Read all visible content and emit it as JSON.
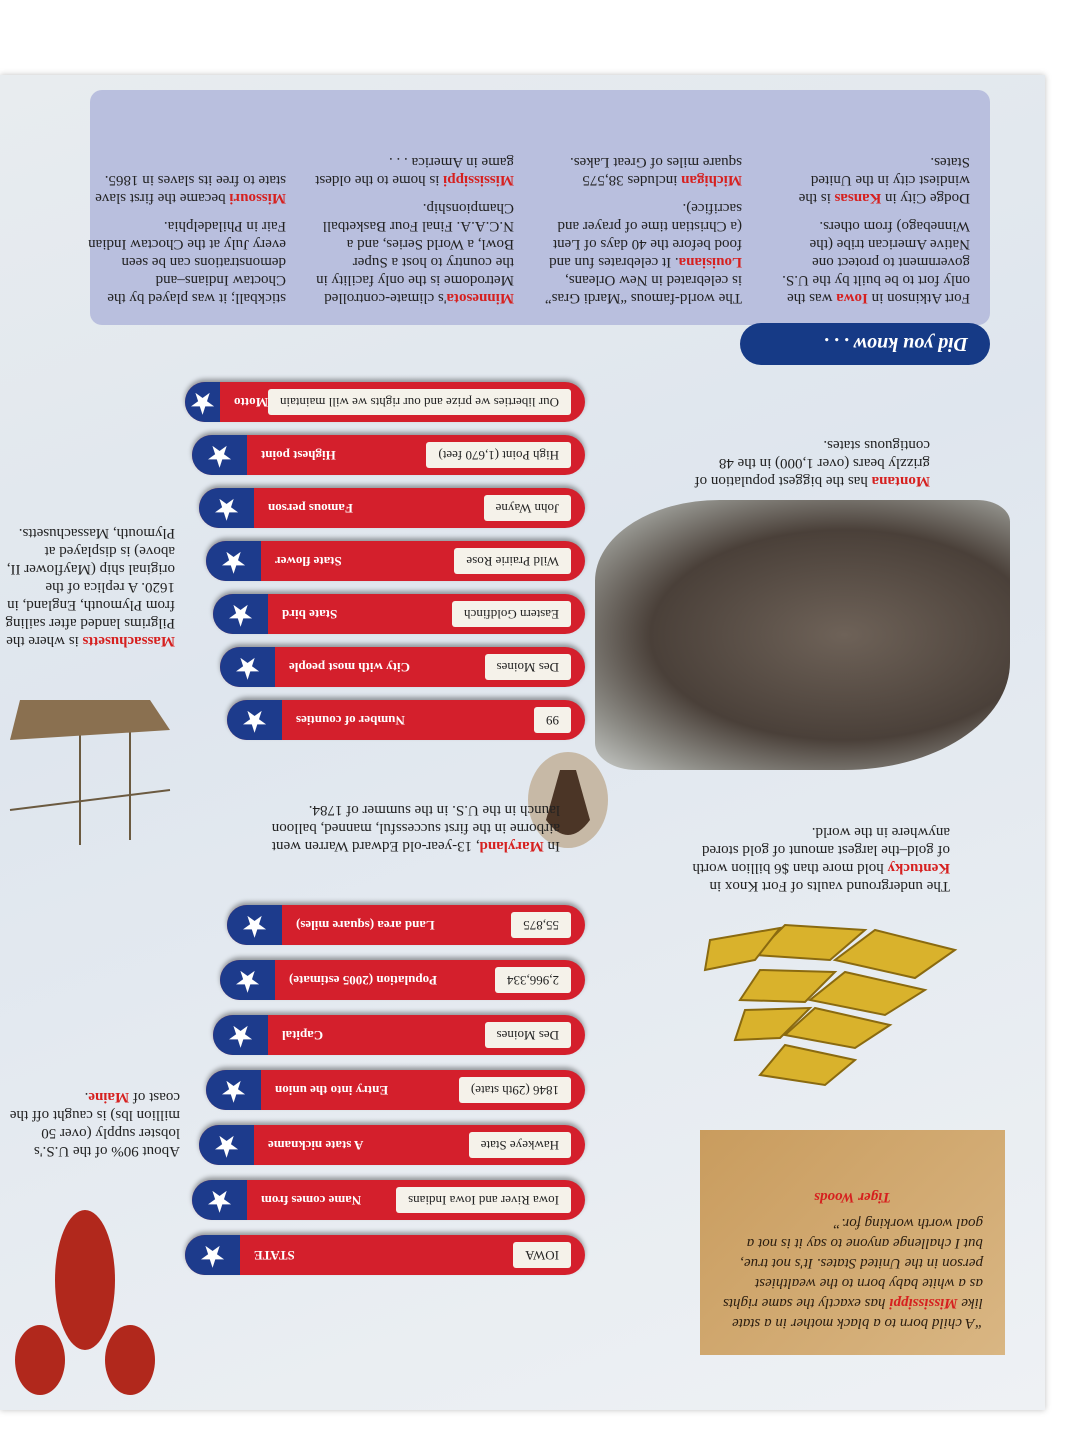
{
  "quote": {
    "pre": "“A child born to a black mother in a state like ",
    "state": "Mississippi",
    "post": " has exactly the same rights as a white baby born to the wealthiest person in the United States. It's not true, but I challenge anyone to say it is not a goal worth working for.”",
    "author": "Tiger Woods"
  },
  "facts_group_1": [
    {
      "label": "STATE",
      "value": "IOWA"
    },
    {
      "label": "Name comes from",
      "value": "Iowa River and Iowa Indians"
    },
    {
      "label": "A state nickname",
      "value": "Hawkeye State"
    },
    {
      "label": "Entry into the union",
      "value": "1846 (29th state)"
    },
    {
      "label": "Capital",
      "value": "Des Moines"
    },
    {
      "label": "Population (2005 estimate)",
      "value": "2,966,334"
    },
    {
      "label": "Land area (square miles)",
      "value": "55,875"
    }
  ],
  "facts_group_2": [
    {
      "label": "Number of counties",
      "value": "99"
    },
    {
      "label": "City with most people",
      "value": "Des Moines"
    },
    {
      "label": "State bird",
      "value": "Eastern Goldfinch"
    },
    {
      "label": "State flower",
      "value": "Wild Prairie Rose"
    },
    {
      "label": "Famous person",
      "value": "John Wayne"
    },
    {
      "label": "Highest point",
      "value": "High Point (1,670 feet)"
    },
    {
      "label": "Motto",
      "value": "Our liberties we prize and our rights we will maintain"
    }
  ],
  "kentucky": {
    "pre": "The underground vaults of Fort Knox in ",
    "state": "Kentucky",
    "post": " hold more than $6 billion worth of gold–the largest amount of gold stored anywhere in the world."
  },
  "maryland": {
    "pre": "In ",
    "state": "Maryland",
    "post": ", 13-year-old Edward Warren went airborne in the first successful, manned, balloon launch in the U.S. in the summer of 1784."
  },
  "montana": {
    "state": "Montana",
    "post": " has the biggest population of grizzly bears (over 1,000) in the 48 contiguous states."
  },
  "maine": {
    "pre": "About 90% of the U.S.'s lobster supply (over 50 million lbs) is caught off the coast of ",
    "state": "Maine",
    "post": "."
  },
  "massachusetts": {
    "state": "Massachusetts",
    "post": " is where the Pilgrims landed after sailing from Plymouth, England, in 1620. A replica of the original ship (Mayflower II, above) is displayed at Plymouth, Massachusetts."
  },
  "did_you_know": {
    "title": "Did you know . . .",
    "items": [
      {
        "pre": "Fort Atkinson in ",
        "state": "Iowa",
        "post": " was the only fort to be built by the U.S. government to protect one Native American tribe (the Winnebago) from others."
      },
      {
        "pre": "Dodge City in ",
        "state": "Kansas",
        "post": " is the windiest city in the United States."
      },
      {
        "pre": "The world-famous “Mardi Gras” is celebrated in New Orleans, ",
        "state": "Louisiana",
        "post": ". It celebrates fun and food before the 40 days of Lent (a Christian time of prayer and sacrifice)."
      },
      {
        "pre": "",
        "state": "Michigan",
        "post": " includes 38,575 square miles of Great Lakes."
      },
      {
        "pre": "",
        "state": "Minnesota",
        "post": "'s climate-controlled Metrodome is the only facility in the country to host a Super Bowl, a World Series, and a N.C.A.A. Final Four Basketball Championship."
      },
      {
        "pre": "",
        "state": "Mississippi",
        "post": " is home to the oldest game in America . . ."
      },
      {
        "pre": "stickball; it was played by the Choctaw Indians–and demonstrations can be seen every July at the Choctaw Indian Fair in Philadelphia.",
        "state": "",
        "post": ""
      },
      {
        "pre": "",
        "state": "Missouri",
        "post": " became the first slave state to free its slaves in 1865."
      }
    ]
  },
  "colors": {
    "bar_red": "#d41f2c",
    "star_blue": "#1d3b8c",
    "state_name_red": "#d6201f",
    "panel": "#b9bfde"
  }
}
